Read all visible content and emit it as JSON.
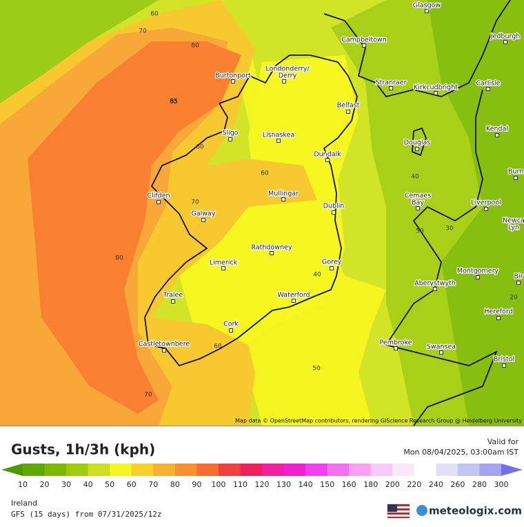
{
  "map": {
    "cities": [
      {
        "lines": [
          "Glasgow"
        ]
      },
      {
        "lines": [
          "Jedburgh"
        ]
      },
      {
        "lines": [
          "Campbeltown"
        ]
      },
      {
        "lines": [
          "Burtonport"
        ]
      },
      {
        "lines": [
          "Londonderry/",
          "Derry"
        ]
      },
      {
        "lines": [
          "Stranraer"
        ]
      },
      {
        "lines": [
          "Kirkcudbright"
        ]
      },
      {
        "lines": [
          "Carlisle"
        ]
      },
      {
        "lines": [
          "Belfast"
        ]
      },
      {
        "lines": [
          "Sligo"
        ]
      },
      {
        "lines": [
          "Lisnaskea"
        ]
      },
      {
        "lines": [
          "Douglas"
        ]
      },
      {
        "lines": [
          "Kendal"
        ]
      },
      {
        "lines": [
          "Dundalk"
        ]
      },
      {
        "lines": [
          "Burn"
        ]
      },
      {
        "lines": [
          "Clifden"
        ]
      },
      {
        "lines": [
          "Mullingar"
        ]
      },
      {
        "lines": [
          "Cemaes",
          "Bay"
        ]
      },
      {
        "lines": [
          "Liverpool"
        ]
      },
      {
        "lines": [
          "Dublin"
        ]
      },
      {
        "lines": [
          "Galway"
        ]
      },
      {
        "lines": [
          "Newca",
          "Lyn"
        ]
      },
      {
        "lines": [
          "Rathdowney"
        ]
      },
      {
        "lines": [
          "Limerick"
        ]
      },
      {
        "lines": [
          "Gorey"
        ]
      },
      {
        "lines": [
          "Montgomery"
        ]
      },
      {
        "lines": [
          "Bir"
        ]
      },
      {
        "lines": [
          "Aberystwyth"
        ]
      },
      {
        "lines": [
          "Tralee"
        ]
      },
      {
        "lines": [
          "Waterford"
        ]
      },
      {
        "lines": [
          "Hereford"
        ]
      },
      {
        "lines": [
          "Cork"
        ]
      },
      {
        "lines": [
          "Castletownbere"
        ]
      },
      {
        "lines": [
          "Pembroke"
        ]
      },
      {
        "lines": [
          "Swansea"
        ]
      },
      {
        "lines": [
          "Bristol"
        ]
      }
    ],
    "contours": [
      "60",
      "70",
      "80",
      "85",
      "60",
      "70",
      "60",
      "80",
      "40",
      "50",
      "60",
      "70",
      "40",
      "30",
      "50",
      "20"
    ],
    "attribution": "Map data © OpenStreetMap contributors, rendering GIScience Research Group @ Heidelberg University"
  },
  "legend": {
    "title": "Gusts, 1h/3h (kph)",
    "valid_label": "Valid for",
    "valid_time": "Mon 08/04/2025, 03:00am IST",
    "scale": [
      10,
      20,
      30,
      40,
      50,
      60,
      70,
      80,
      90,
      100,
      110,
      120,
      130,
      140,
      150,
      160,
      180,
      200,
      220,
      240,
      260,
      280,
      300
    ],
    "colors": [
      "#4a9a00",
      "#5ea800",
      "#7cba00",
      "#a0cc10",
      "#cce020",
      "#f4f420",
      "#f8d028",
      "#f8b030",
      "#f89030",
      "#f86c30",
      "#f04040",
      "#f02060",
      "#f020a0",
      "#f020d0",
      "#f040f0",
      "#f070f0",
      "#f8a0f0",
      "#f8c8f8",
      "#f8e8f8",
      "#ffffff",
      "#e0e0f8",
      "#c4c4f0",
      "#a4a4f0",
      "#7070e8"
    ]
  },
  "footer": {
    "region": "Ireland",
    "model": "GFS (15 days) from 07/31/2025/12z",
    "brand": "meteologix.com"
  }
}
